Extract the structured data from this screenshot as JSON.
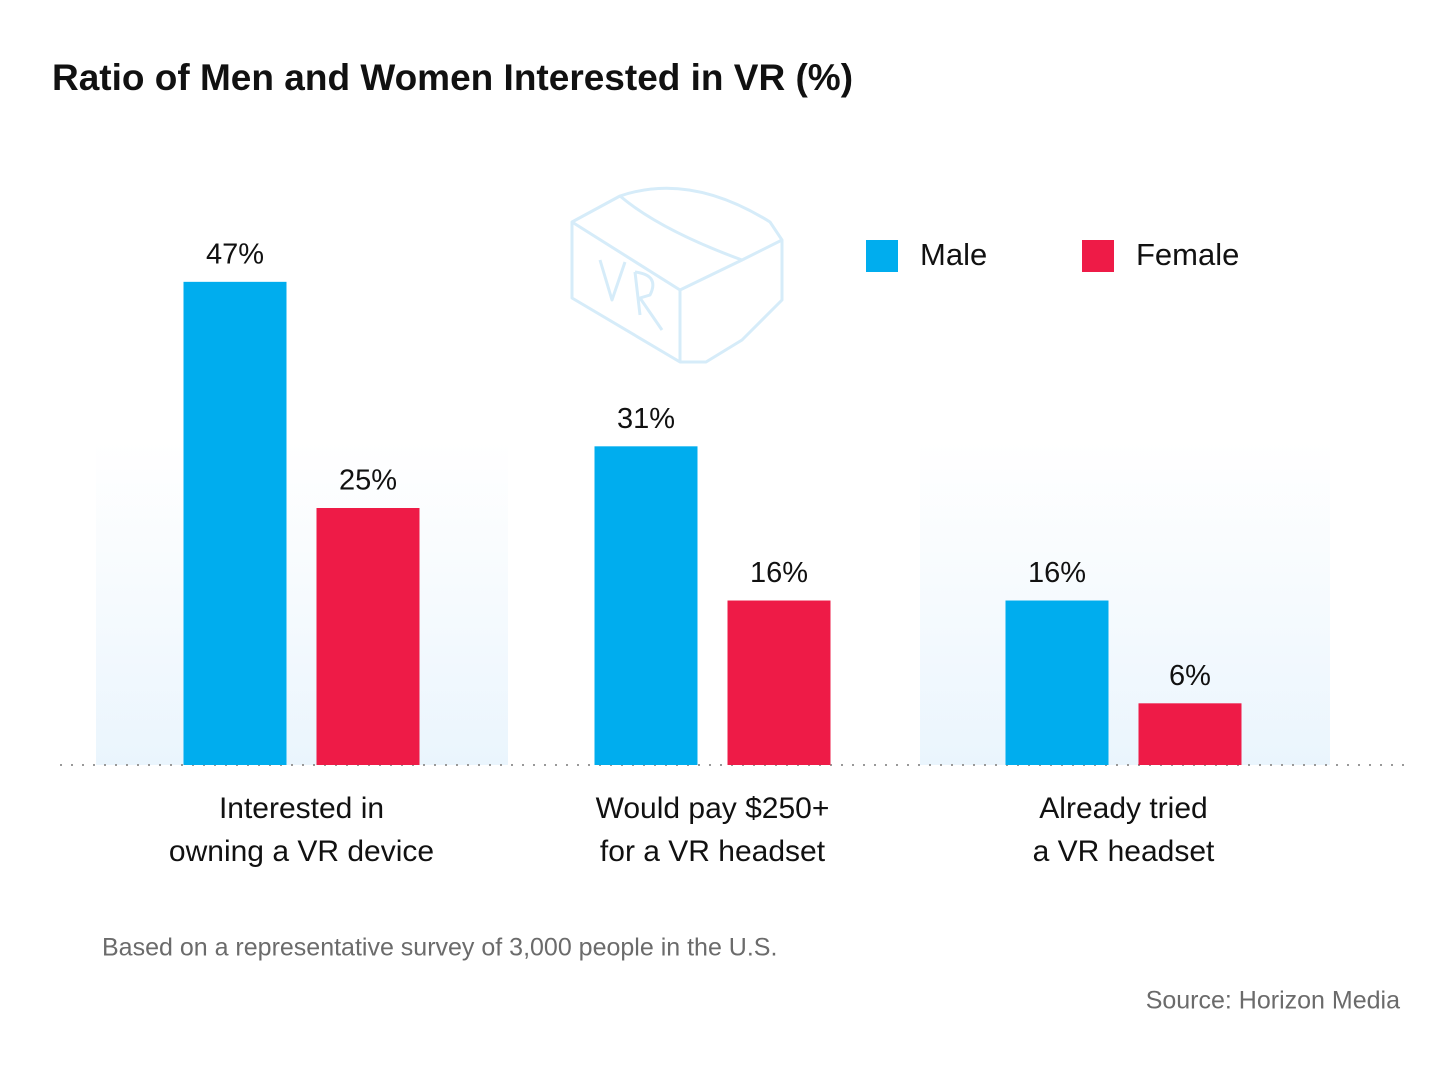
{
  "chart_data": {
    "type": "bar",
    "title": "Ratio of Men and Women Interested in VR (%)",
    "categories": [
      "Interested in\nowning a VR device",
      "Would pay $250+\nfor a VR headset",
      "Already tried\na VR headset"
    ],
    "series": [
      {
        "name": "Male",
        "color": "#00adee",
        "values": [
          47,
          31,
          16
        ],
        "value_labels": [
          "47%",
          "31%",
          "16%"
        ]
      },
      {
        "name": "Female",
        "color": "#ee1b47",
        "values": [
          25,
          16,
          6
        ],
        "value_labels": [
          "25%",
          "16%",
          "6%"
        ]
      }
    ],
    "ylim": [
      0,
      50
    ],
    "legend": "top-right",
    "note": "Based on a representative survey of 3,000 people in the U.S.",
    "source": "Source: Horizon Media"
  }
}
